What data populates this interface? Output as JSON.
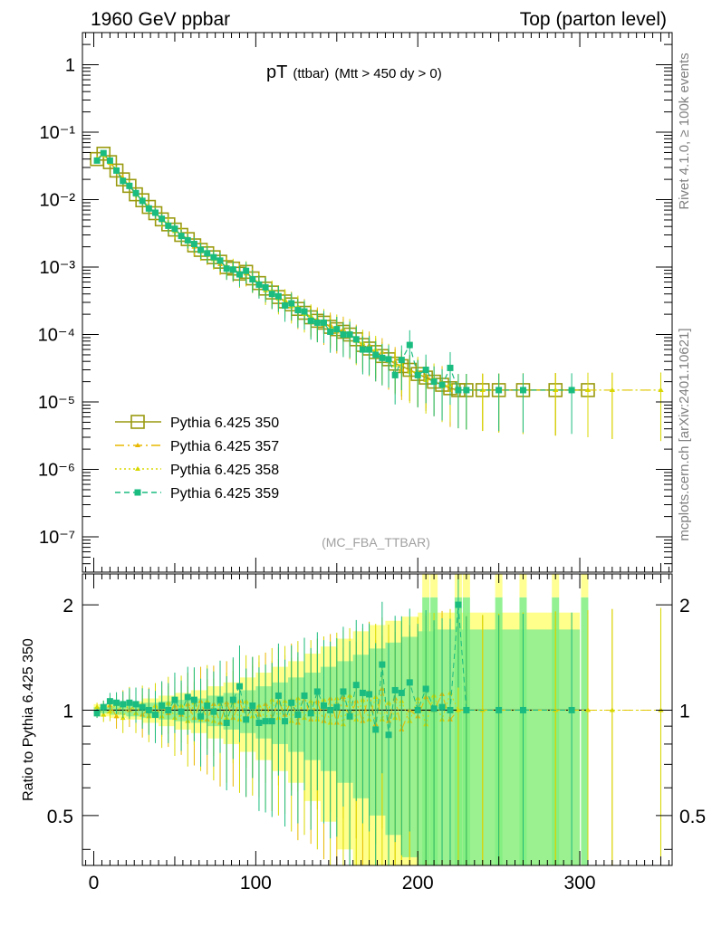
{
  "header": {
    "left": "1960 GeV ppbar",
    "right": "Top (parton level)"
  },
  "side_labels": {
    "rivet": "Rivet 4.1.0, ≥ 100k events",
    "mcplots": "mcplots.cern.ch [arXiv:2401.10621]"
  },
  "chart_data": [
    {
      "type": "line",
      "panel": "main",
      "title": "pT",
      "title_sub": "(ttbar)",
      "title_cut": "(Mtt > 450 dy > 0)",
      "watermark": "(MC_FBA_TTBAR)",
      "yscale": "log",
      "xlim": [
        -7,
        357
      ],
      "ylim": [
        3e-08,
        3
      ],
      "y_tick_labels": [
        "1",
        "10⁻¹",
        "10⁻²",
        "10⁻³",
        "10⁻⁴",
        "10⁻⁵",
        "10⁻⁶",
        "10⁻⁷"
      ],
      "y_tick_values": [
        1,
        0.1,
        0.01,
        0.001,
        0.0001,
        1e-05,
        1e-06,
        1e-07
      ],
      "legend_position": "lower-left",
      "series": [
        {
          "name": "Pythia 6.425 350",
          "color": "#9a9a10",
          "style": "solid-open-square",
          "x": [
            2,
            6,
            10,
            14,
            18,
            22,
            26,
            30,
            34,
            38,
            42,
            46,
            50,
            54,
            58,
            62,
            66,
            70,
            74,
            78,
            82,
            86,
            90,
            94,
            98,
            102,
            106,
            110,
            114,
            118,
            122,
            126,
            130,
            134,
            138,
            142,
            146,
            150,
            154,
            158,
            162,
            166,
            170,
            174,
            178,
            182,
            186,
            190,
            195,
            200,
            205,
            210,
            215,
            220,
            225,
            230,
            240,
            250,
            265,
            285,
            305
          ],
          "y": [
            0.04,
            0.048,
            0.036,
            0.027,
            0.02,
            0.016,
            0.012,
            0.0098,
            0.0078,
            0.0063,
            0.0051,
            0.0043,
            0.0036,
            0.003,
            0.0026,
            0.0021,
            0.0018,
            0.0016,
            0.0014,
            0.0012,
            0.001,
            0.00095,
            0.0008,
            0.00085,
            0.00068,
            0.00058,
            0.00048,
            0.00042,
            0.00036,
            0.00031,
            0.00028,
            0.00024,
            0.00021,
            0.00018,
            0.00016,
            0.00015,
            0.00013,
            0.00012,
            0.00011,
            0.0001,
            8.5e-05,
            7e-05,
            6.2e-05,
            5.5e-05,
            4.8e-05,
            4.3e-05,
            3.7e-05,
            3.4e-05,
            3e-05,
            2.6e-05,
            2.3e-05,
            2e-05,
            1.8e-05,
            1.6e-05,
            1.5e-05,
            1.5e-05,
            1.5e-05,
            1.5e-05,
            1.5e-05,
            1.5e-05,
            1.5e-05
          ],
          "ratio": [
            1,
            1,
            1,
            1,
            1,
            1,
            1,
            1,
            1,
            1,
            1,
            1,
            1,
            1,
            1,
            1,
            1,
            1,
            1,
            1,
            1,
            1,
            1,
            1,
            1,
            1,
            1,
            1,
            1,
            1,
            1,
            1,
            1,
            1,
            1,
            1,
            1,
            1,
            1,
            1,
            1,
            1,
            1,
            1,
            1,
            1,
            1,
            1,
            1,
            1,
            1,
            1,
            1,
            1,
            1,
            1,
            1,
            1,
            1,
            1,
            1
          ]
        },
        {
          "name": "Pythia 6.425 357",
          "color": "#e8b800",
          "style": "dashdot-triangle",
          "x": [
            2,
            6,
            10,
            14,
            18,
            22,
            26,
            30,
            34,
            38,
            42,
            46,
            50,
            54,
            58,
            62,
            66,
            70,
            74,
            78,
            82,
            86,
            90,
            94,
            98,
            102,
            106,
            110,
            114,
            118,
            122,
            126,
            130,
            134,
            138,
            142,
            146,
            150,
            154,
            158,
            162,
            166,
            170,
            174,
            178,
            182,
            186,
            190,
            195,
            200,
            205,
            210,
            215,
            220,
            225,
            230,
            240,
            250,
            265,
            285,
            305,
            320,
            350
          ],
          "y": [
            0.039,
            0.047,
            0.037,
            0.026,
            0.021,
            0.016,
            0.0125,
            0.0095,
            0.0079,
            0.0062,
            0.0052,
            0.0042,
            0.0037,
            0.0029,
            0.0027,
            0.002,
            0.0019,
            0.0015,
            0.00145,
            0.0011,
            0.00105,
            0.0009,
            0.00085,
            0.0008,
            0.0007,
            0.00056,
            0.0005,
            0.0004,
            0.00038,
            0.0003,
            0.0003,
            0.00022,
            0.00023,
            0.00017,
            0.00017,
            0.00014,
            0.00014,
            0.00011,
            0.00012,
            9.5e-05,
            9e-05,
            6.5e-05,
            7e-05,
            5e-05,
            5.5e-05,
            4e-05,
            4e-05,
            3e-05,
            3e-05,
            2.5e-05,
            2.5e-05,
            2e-05,
            2e-05,
            1.5e-05,
            1.5e-05,
            1.5e-05,
            1.5e-05,
            1.5e-05,
            1.5e-05,
            1.5e-05,
            1.5e-05,
            1.5e-05,
            1.5e-05
          ],
          "ratio": [
            0.98,
            1.02,
            1.03,
            0.96,
            1.05,
            1.0,
            1.04,
            0.97,
            1.01,
            0.98,
            1.02,
            0.98,
            1.03,
            0.97,
            1.04,
            0.95,
            1.06,
            0.94,
            1.04,
            0.92,
            1.05,
            0.95,
            1.06,
            0.94,
            1.03,
            0.97,
            1.04,
            0.95,
            1.06,
            0.97,
            1.07,
            0.92,
            1.1,
            0.94,
            1.06,
            0.93,
            1.08,
            0.92,
            1.09,
            0.95,
            1.06,
            0.93,
            1.13,
            0.91,
            1.15,
            0.93,
            1.08,
            0.88,
            1.0,
            0.96,
            1.09,
            1.0,
            1.11,
            0.94,
            1.0,
            1.0,
            1.0,
            1.0,
            1.0,
            1.0,
            1.0,
            1.0,
            1.0
          ]
        },
        {
          "name": "Pythia 6.425 358",
          "color": "#d8d800",
          "style": "dotted-triangle",
          "x": [
            2,
            6,
            10,
            14,
            18,
            22,
            26,
            30,
            34,
            38,
            42,
            46,
            50,
            54,
            58,
            62,
            66,
            70,
            74,
            78,
            82,
            86,
            90,
            94,
            98,
            102,
            106,
            110,
            114,
            118,
            122,
            126,
            130,
            134,
            138,
            142,
            146,
            150,
            154,
            158,
            162,
            166,
            170,
            174,
            178,
            182,
            186,
            190,
            195,
            200,
            205,
            210,
            215,
            220,
            225,
            230,
            240,
            250,
            265,
            285,
            305,
            320,
            350
          ],
          "y": [
            0.041,
            0.046,
            0.035,
            0.028,
            0.019,
            0.017,
            0.0118,
            0.0102,
            0.0075,
            0.0065,
            0.0049,
            0.0045,
            0.0034,
            0.0031,
            0.0024,
            0.0022,
            0.0017,
            0.0017,
            0.0013,
            0.00125,
            0.00095,
            0.001,
            0.00075,
            0.0009,
            0.00065,
            0.0006,
            0.00045,
            0.00045,
            0.00034,
            0.00033,
            0.00026,
            0.00026,
            0.0002,
            0.00019,
            0.00015,
            0.00016,
            0.00012,
            0.00013,
            0.0001,
            0.00011,
            8e-05,
            7.5e-05,
            5.8e-05,
            6e-05,
            4.5e-05,
            4.5e-05,
            3.5e-05,
            3.6e-05,
            2.8e-05,
            2.8e-05,
            2.1e-05,
            2.2e-05,
            1.7e-05,
            1.8e-05,
            1.5e-05,
            1.5e-05,
            1.5e-05,
            1.5e-05,
            1.5e-05,
            1.5e-05,
            1.5e-05,
            1.5e-05,
            1.5e-05
          ],
          "ratio": [
            1.02,
            0.97,
            0.99,
            1.04,
            0.95,
            1.06,
            0.98,
            1.04,
            0.96,
            1.03,
            0.96,
            1.05,
            0.95,
            1.03,
            0.93,
            1.05,
            0.94,
            1.06,
            0.93,
            1.04,
            0.95,
            1.05,
            0.94,
            1.06,
            0.96,
            1.03,
            0.94,
            1.07,
            0.95,
            1.06,
            0.93,
            1.08,
            0.95,
            1.06,
            0.94,
            1.07,
            0.92,
            1.08,
            0.91,
            1.1,
            0.94,
            1.07,
            0.94,
            1.09,
            0.94,
            1.05,
            0.95,
            1.06,
            0.93,
            1.08,
            0.91,
            1.1,
            0.94,
            1.12,
            1.0,
            1.0,
            1.0,
            1.0,
            1.0,
            1.0,
            1.0,
            1.0,
            1.0
          ]
        },
        {
          "name": "Pythia 6.425 359",
          "color": "#1abc80",
          "style": "dashed-filled-square",
          "x": [
            2,
            6,
            10,
            14,
            18,
            22,
            26,
            30,
            34,
            38,
            42,
            46,
            50,
            54,
            58,
            62,
            66,
            70,
            74,
            78,
            82,
            86,
            90,
            94,
            98,
            102,
            106,
            110,
            114,
            118,
            122,
            126,
            130,
            134,
            138,
            142,
            146,
            150,
            154,
            158,
            162,
            166,
            170,
            174,
            178,
            182,
            186,
            190,
            195,
            200,
            205,
            210,
            215,
            220,
            225,
            230,
            250,
            265,
            295
          ],
          "y": [
            0.038,
            0.049,
            0.038,
            0.027,
            0.019,
            0.016,
            0.0125,
            0.0096,
            0.0074,
            0.0064,
            0.0052,
            0.0041,
            0.0037,
            0.0029,
            0.0025,
            0.0022,
            0.0018,
            0.0016,
            0.0014,
            0.00125,
            0.00095,
            0.00092,
            0.00078,
            0.00088,
            0.00066,
            0.00055,
            0.0005,
            0.0004,
            0.00037,
            0.00027,
            0.00029,
            0.00023,
            0.00022,
            0.00016,
            0.00015,
            0.00015,
            0.00011,
            0.00012,
            0.0001,
            0.0001,
            8.5e-05,
            6e-05,
            6e-05,
            5e-05,
            4.5e-05,
            4.3e-05,
            2.5e-05,
            4.2e-05,
            7e-05,
            2.5e-05,
            3e-05,
            2e-05,
            1.8e-05,
            3.2e-05,
            1.5e-05,
            1.5e-05,
            1.5e-05,
            1.5e-05,
            1.5e-05
          ],
          "ratio": [
            0.98,
            1.02,
            1.06,
            1.05,
            1.04,
            1.05,
            1.04,
            1.02,
            1.0,
            0.97,
            1.03,
            1.0,
            1.07,
            0.99,
            1.09,
            1.07,
            0.96,
            1.03,
            0.99,
            1.07,
            0.92,
            1.07,
            1.17,
            0.94,
            1.03,
            0.92,
            0.93,
            0.93,
            1.1,
            0.93,
            1.05,
            0.97,
            1.1,
            0.98,
            1.13,
            1.03,
            1.0,
            1.02,
            1.13,
            0.96,
            1.18,
            1.12,
            1.11,
            0.88,
            1.35,
            0.85,
            1.14,
            1.12,
            1.2,
            1.0,
            1.15,
            1.01,
            1.02,
            1.0,
            2.0,
            1.0,
            1.0,
            1.0,
            1.0
          ]
        }
      ]
    },
    {
      "type": "line",
      "panel": "ratio",
      "ylabel": "Ratio to Pythia 6.425 350",
      "yscale": "log",
      "xlim": [
        -7,
        357
      ],
      "ylim": [
        0.36,
        2.45
      ],
      "x_tick_labels": [
        "0",
        "100",
        "200",
        "300"
      ],
      "x_tick_values": [
        0,
        100,
        200,
        300
      ],
      "y_tick_labels": [
        "0.5",
        "1",
        "2"
      ],
      "y_tick_values": [
        0.5,
        1,
        2
      ],
      "reference_line": 1,
      "bands": [
        {
          "name": "yellow band",
          "color": "#ffff80",
          "x": [
            0,
            10,
            20,
            30,
            40,
            50,
            60,
            70,
            80,
            90,
            100,
            110,
            120,
            130,
            140,
            150,
            160,
            170,
            180,
            190,
            200,
            210,
            220,
            230,
            250,
            265,
            285,
            300
          ],
          "err": [
            0.04,
            0.05,
            0.06,
            0.08,
            0.1,
            0.12,
            0.14,
            0.17,
            0.2,
            0.24,
            0.28,
            0.33,
            0.38,
            0.45,
            0.52,
            0.6,
            0.68,
            0.75,
            0.8,
            0.85,
            0.9,
            0.9,
            0.9,
            0.9,
            0.9,
            0.9,
            0.9,
            0.9
          ]
        },
        {
          "name": "green band",
          "color": "#90ee90",
          "x": [
            0,
            10,
            20,
            30,
            40,
            50,
            60,
            70,
            80,
            90,
            100,
            110,
            120,
            130,
            140,
            150,
            160,
            170,
            180,
            190,
            200,
            210,
            220,
            230,
            250,
            265,
            285,
            300
          ],
          "err": [
            0.02,
            0.03,
            0.04,
            0.05,
            0.06,
            0.07,
            0.08,
            0.1,
            0.12,
            0.14,
            0.17,
            0.2,
            0.24,
            0.28,
            0.33,
            0.38,
            0.44,
            0.5,
            0.56,
            0.62,
            0.68,
            0.7,
            0.7,
            0.7,
            0.7,
            0.7,
            0.7,
            0.7
          ]
        }
      ]
    }
  ]
}
